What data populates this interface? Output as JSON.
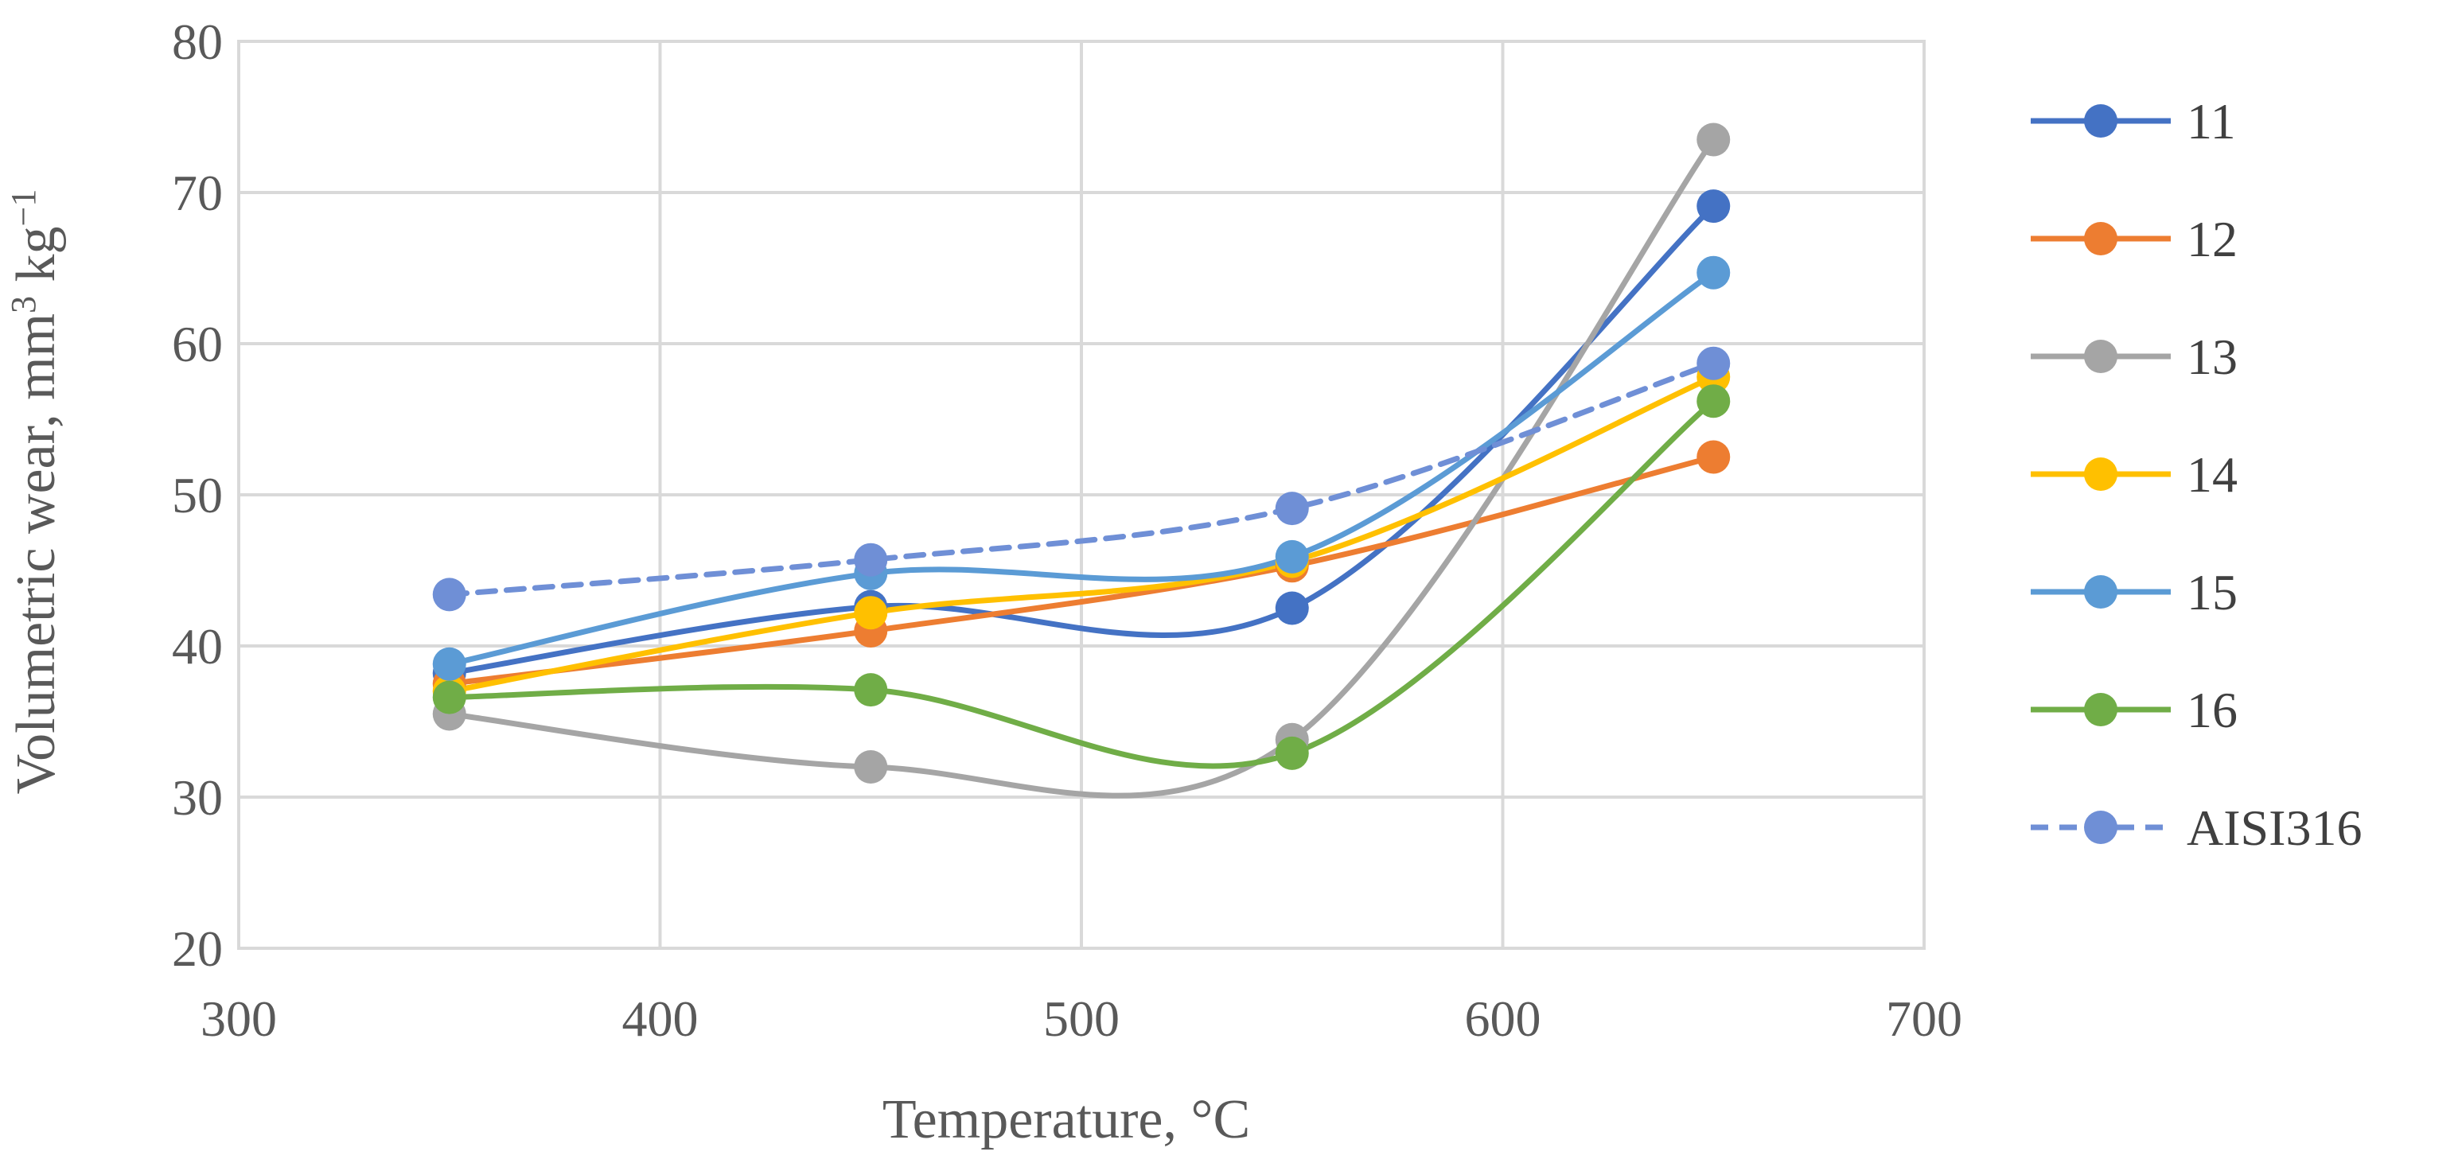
{
  "chart_data": {
    "type": "line",
    "title": "",
    "xlabel": "Temperature, °C",
    "ylabel": "Volumetric wear, mm³ kg⁻¹",
    "ylabel_main": "Volumetric wear, mm",
    "ylabel_sup1": "3",
    "ylabel_mid": " kg",
    "ylabel_sup2": "−1",
    "xlim": [
      300,
      700
    ],
    "ylim": [
      20,
      80
    ],
    "xticks": [
      "300",
      "400",
      "500",
      "600",
      "700"
    ],
    "yticks": [
      "20",
      "30",
      "40",
      "50",
      "60",
      "70",
      "80"
    ],
    "x": [
      350,
      450,
      550,
      650
    ],
    "grid": true,
    "smooth": true,
    "legend_position": "right",
    "series": [
      {
        "name": "11",
        "color": "#4472c4",
        "dashed": false,
        "values": [
          38.2,
          42.6,
          42.5,
          69.1
        ]
      },
      {
        "name": "12",
        "color": "#ed7d31",
        "dashed": false,
        "values": [
          37.5,
          41.0,
          45.3,
          52.5
        ]
      },
      {
        "name": "13",
        "color": "#a5a5a5",
        "dashed": false,
        "values": [
          35.5,
          32.0,
          33.8,
          73.5
        ]
      },
      {
        "name": "14",
        "color": "#ffc000",
        "dashed": false,
        "values": [
          37.0,
          42.2,
          45.6,
          57.8
        ]
      },
      {
        "name": "15",
        "color": "#5b9bd5",
        "dashed": false,
        "values": [
          38.8,
          44.8,
          45.9,
          64.7
        ]
      },
      {
        "name": "16",
        "color": "#70ad47",
        "dashed": false,
        "values": [
          36.6,
          37.1,
          32.9,
          56.2
        ]
      },
      {
        "name": "AISI316",
        "color": "#6f8fd6",
        "dashed": true,
        "values": [
          43.4,
          45.7,
          49.1,
          58.7
        ]
      }
    ]
  }
}
